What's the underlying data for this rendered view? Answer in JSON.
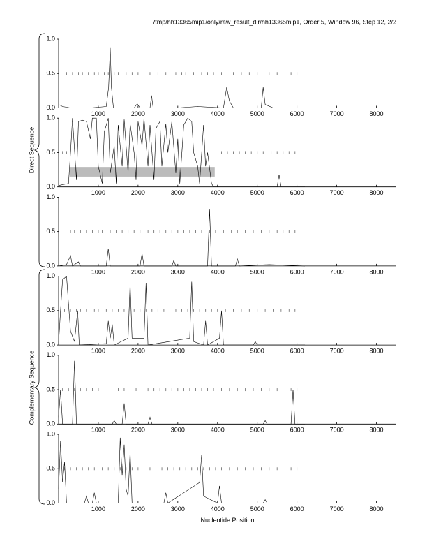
{
  "title": "/tmp/hh13365mip1/only/raw_result_dir/hh13365mip1, Order 5, Window 96, Step 12, 2/2",
  "groups": [
    "Direct Sequence",
    "Complementary Sequence"
  ],
  "chart_data": [
    {
      "type": "line",
      "xlim": [
        0,
        8500
      ],
      "ylim": [
        0,
        1
      ],
      "xticks": [
        1000,
        2000,
        3000,
        4000,
        5000,
        6000,
        7000,
        8000
      ],
      "yticks": [
        {
          "value": 0,
          "label": "0.0"
        },
        {
          "value": 0.5,
          "label": "0.5"
        },
        {
          "value": 1,
          "label": "1.0"
        }
      ],
      "x": [
        0,
        100,
        300,
        800,
        1200,
        1260,
        1300,
        1330,
        1380,
        1900,
        1980,
        2050,
        2300,
        2340,
        2380,
        3000,
        3500,
        4150,
        4230,
        4300,
        4400,
        5100,
        5150,
        5200,
        5400,
        6200
      ],
      "values": [
        0.05,
        0.02,
        0,
        0,
        0.02,
        0.3,
        0.87,
        0.3,
        0,
        0,
        0.06,
        0,
        0,
        0.18,
        0,
        0,
        0.02,
        0,
        0.3,
        0.1,
        0,
        0,
        0.3,
        0.05,
        0,
        0
      ],
      "hits": [
        200,
        350,
        500,
        600,
        750,
        900,
        1000,
        1150,
        1250,
        1400,
        1500,
        1700,
        1850,
        2000,
        2300,
        2500,
        2700,
        2800,
        2950,
        3100,
        3200,
        3400,
        3600,
        3750,
        3900,
        4100,
        4400,
        4600,
        4800,
        5000,
        5300,
        5500,
        5700,
        5850,
        6000
      ]
    },
    {
      "type": "line",
      "xlim": [
        0,
        8500
      ],
      "ylim": [
        0,
        1
      ],
      "xticks": [
        1000,
        2000,
        3000,
        4000,
        5000,
        6000,
        7000,
        8000
      ],
      "yticks": [
        {
          "value": 0,
          "label": "0.0"
        },
        {
          "value": 0.5,
          "label": "0.5"
        },
        {
          "value": 1,
          "label": "1.0"
        }
      ],
      "x": [
        0,
        250,
        300,
        350,
        450,
        500,
        600,
        700,
        800,
        850,
        950,
        1000,
        1100,
        1150,
        1250,
        1300,
        1400,
        1450,
        1500,
        1600,
        1650,
        1750,
        1800,
        1900,
        1950,
        2000,
        2100,
        2150,
        2250,
        2300,
        2400,
        2450,
        2550,
        2600,
        2700,
        2750,
        2850,
        2950,
        3000,
        3050,
        3150,
        3250,
        3350,
        3400,
        3500,
        3550,
        3650,
        3700,
        3750,
        3850,
        3900,
        4500,
        5500,
        5550,
        5600,
        6200
      ],
      "values": [
        0.02,
        0.05,
        0.5,
        1,
        0.1,
        0.95,
        0.97,
        0.95,
        0.7,
        1,
        1,
        0.3,
        0.05,
        0.8,
        1,
        0.2,
        0.6,
        0.05,
        0.9,
        0.3,
        0.98,
        0.2,
        0.92,
        0.5,
        0.1,
        0.95,
        0.6,
        1,
        0.3,
        0.9,
        0.1,
        0.85,
        0.95,
        0.3,
        0.92,
        0.5,
        0.95,
        0.2,
        0.7,
        0.05,
        0.9,
        1,
        0.95,
        0.5,
        0.3,
        0.05,
        0.9,
        0.3,
        0.5,
        0.05,
        0,
        0,
        0,
        0.18,
        0,
        0
      ],
      "hits": [
        100,
        200,
        4100,
        4250,
        4400,
        4550,
        4700,
        4850,
        5000,
        5150,
        5350,
        5500,
        5650,
        5800,
        5950
      ],
      "highlight": {
        "x": [
          280,
          3930
        ],
        "y": [
          0.15,
          0.29
        ]
      }
    },
    {
      "type": "line",
      "xlim": [
        0,
        8500
      ],
      "ylim": [
        0,
        1
      ],
      "xticks": [
        1000,
        2000,
        3000,
        4000,
        5000,
        6000,
        7000,
        8000
      ],
      "yticks": [
        {
          "value": 0,
          "label": "0.0"
        },
        {
          "value": 0.5,
          "label": "0.5"
        },
        {
          "value": 1,
          "label": "1.0"
        }
      ],
      "x": [
        0,
        200,
        300,
        350,
        500,
        550,
        1200,
        1250,
        1300,
        2050,
        2100,
        2150,
        2850,
        2900,
        2950,
        3750,
        3800,
        3850,
        4450,
        4500,
        4550,
        5300,
        6200
      ],
      "values": [
        0,
        0.02,
        0.15,
        0,
        0.06,
        0,
        0,
        0.25,
        0,
        0,
        0.18,
        0,
        0,
        0.08,
        0,
        0,
        0.82,
        0,
        0,
        0.1,
        0,
        0.02,
        0
      ],
      "hits": [
        300,
        400,
        550,
        700,
        850,
        1000,
        1100,
        1300,
        1450,
        1600,
        1750,
        1900,
        2050,
        2250,
        2400,
        2550,
        2700,
        2850,
        3000,
        3150,
        3300,
        3450,
        3600,
        3800,
        3950,
        4150,
        4350,
        4500,
        4700,
        4900,
        5100,
        5300,
        5500,
        5650,
        5800,
        5950
      ]
    },
    {
      "type": "line",
      "xlim": [
        0,
        8500
      ],
      "ylim": [
        0,
        1
      ],
      "xticks": [
        1000,
        2000,
        3000,
        4000,
        5000,
        6000,
        7000,
        8000
      ],
      "yticks": [
        {
          "value": 0,
          "label": "0.0"
        },
        {
          "value": 0.5,
          "label": "0.5"
        },
        {
          "value": 1,
          "label": "1.0"
        }
      ],
      "x": [
        0,
        50,
        100,
        200,
        250,
        300,
        400,
        480,
        520,
        1200,
        1250,
        1300,
        1350,
        1400,
        1750,
        1800,
        1850,
        2150,
        2200,
        2250,
        3300,
        3350,
        3400,
        3650,
        3700,
        3750,
        4050,
        4100,
        4150,
        4900,
        4950,
        5000,
        6200
      ],
      "values": [
        0.02,
        0.5,
        0.95,
        1,
        0.6,
        0.2,
        0.05,
        0.5,
        0,
        0.02,
        0.35,
        0.1,
        0.3,
        0,
        0.1,
        0.9,
        0.1,
        0.1,
        0.9,
        0,
        0.1,
        0.92,
        0.05,
        0,
        0.35,
        0,
        0.1,
        0.5,
        0,
        0,
        0.05,
        0,
        0
      ],
      "hits": [
        150,
        300,
        450,
        550,
        700,
        900,
        1000,
        1200,
        1350,
        1500,
        1650,
        1750,
        1900,
        2050,
        2200,
        2350,
        2500,
        2650,
        2800,
        2950,
        3100,
        3250,
        3400,
        3550,
        3700,
        3850,
        4000,
        4200,
        4400,
        4600,
        4800,
        5000,
        5200,
        5400,
        5600,
        5800,
        5950
      ]
    },
    {
      "type": "line",
      "xlim": [
        0,
        8500
      ],
      "ylim": [
        0,
        1
      ],
      "xticks": [
        1000,
        2000,
        3000,
        4000,
        5000,
        6000,
        7000,
        8000
      ],
      "yticks": [
        {
          "value": 0,
          "label": "0.0"
        },
        {
          "value": 0.5,
          "label": "0.5"
        },
        {
          "value": 1,
          "label": "1.0"
        }
      ],
      "x": [
        0,
        50,
        100,
        350,
        400,
        450,
        1350,
        1400,
        1450,
        1600,
        1650,
        1700,
        2250,
        2300,
        2350,
        5150,
        5200,
        5250,
        5850,
        5900,
        5950,
        6200
      ],
      "values": [
        0.1,
        0.5,
        0,
        0,
        0.92,
        0,
        0,
        0.05,
        0,
        0,
        0.3,
        0,
        0,
        0.1,
        0,
        0,
        0.05,
        0,
        0,
        0.5,
        0,
        0
      ],
      "hits": [
        100,
        250,
        400,
        550,
        700,
        850,
        1000,
        1500,
        1650,
        1800,
        1950,
        2100,
        2250,
        2400,
        2550,
        2700,
        2850,
        3000,
        3150,
        3300,
        3450,
        3600,
        3750,
        3900,
        4100,
        4300,
        4500,
        4700,
        4900,
        5100,
        5300,
        5500,
        5700,
        5850,
        6000
      ]
    },
    {
      "type": "line",
      "xlim": [
        0,
        8500
      ],
      "ylim": [
        0,
        1
      ],
      "xticks": [
        1000,
        2000,
        3000,
        4000,
        5000,
        6000,
        7000,
        8000
      ],
      "yticks": [
        {
          "value": 0,
          "label": "0.0"
        },
        {
          "value": 0.5,
          "label": "0.5"
        },
        {
          "value": 1,
          "label": "1.0"
        }
      ],
      "x": [
        0,
        50,
        100,
        150,
        200,
        650,
        700,
        750,
        850,
        900,
        950,
        1500,
        1550,
        1600,
        1650,
        1700,
        1750,
        1800,
        1850,
        2650,
        2700,
        2750,
        3550,
        3600,
        3650,
        4000,
        4050,
        4100,
        5150,
        5200,
        5250,
        6200
      ],
      "values": [
        0.2,
        0.9,
        0.3,
        0.6,
        0,
        0,
        0.1,
        0,
        0,
        0.15,
        0,
        0,
        0.95,
        0.4,
        0.85,
        0.2,
        0.1,
        0.75,
        0,
        0,
        0.15,
        0,
        0.3,
        0.7,
        0.1,
        0,
        0.25,
        0,
        0,
        0.05,
        0,
        0
      ],
      "hits": [
        150,
        300,
        450,
        600,
        750,
        900,
        1100,
        1250,
        1400,
        1550,
        1700,
        1850,
        2000,
        2150,
        2300,
        2450,
        2600,
        2750,
        2900,
        3050,
        3200,
        3350,
        3500,
        3650,
        3800,
        3950,
        4100,
        4300,
        4500,
        4700,
        4900,
        5100,
        5300,
        5500,
        5700,
        5850,
        6000
      ],
      "xlabel": "Nucleotide Position"
    }
  ]
}
